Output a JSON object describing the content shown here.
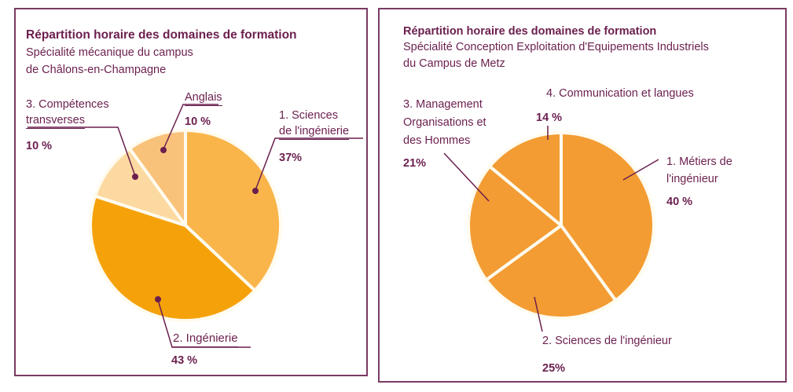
{
  "chart_data": [
    {
      "type": "pie",
      "title": "Répartition horaire des domaines de formation",
      "subtitle": [
        "Spécialité mécanique du campus",
        "de Châlons-en-Champagne"
      ],
      "start": "top",
      "direction": "clockwise",
      "slices": [
        {
          "label": [
            "1. Sciences",
            "de l'ingénierie"
          ],
          "value": 37,
          "value_label": "37%",
          "color": "#f9b54a"
        },
        {
          "label": [
            "2. Ingénierie"
          ],
          "value": 43,
          "value_label": "43 %",
          "color": "#f5a20a"
        },
        {
          "label": [
            "3. Compétences",
            "transverses"
          ],
          "value": 10,
          "value_label": "10 %",
          "color": "#fcd9a0"
        },
        {
          "label": [
            "Anglais"
          ],
          "value": 10,
          "value_label": "10 %",
          "color": "#f9c27a"
        }
      ]
    },
    {
      "type": "pie",
      "title": "Répartition horaire des domaines de formation",
      "subtitle": [
        "Spécialité Conception Exploitation d'Equipements Industriels",
        "du Campus de Metz"
      ],
      "start": "top",
      "direction": "clockwise",
      "slices": [
        {
          "label": [
            "1. Métiers de",
            "l'ingénieur"
          ],
          "value": 40,
          "value_label": "40 %",
          "color": "#f39c33"
        },
        {
          "label": [
            "2. Sciences de l'ingénieur"
          ],
          "value": 25,
          "value_label": "25%",
          "color": "#f39c33"
        },
        {
          "label": [
            "3. Management",
            "Organisations et",
            "des Hommes"
          ],
          "value": 21,
          "value_label": "21%",
          "color": "#f39c33"
        },
        {
          "label": [
            "4. Communication et langues"
          ],
          "value": 14,
          "value_label": "14 %",
          "color": "#f39c33"
        }
      ]
    }
  ]
}
